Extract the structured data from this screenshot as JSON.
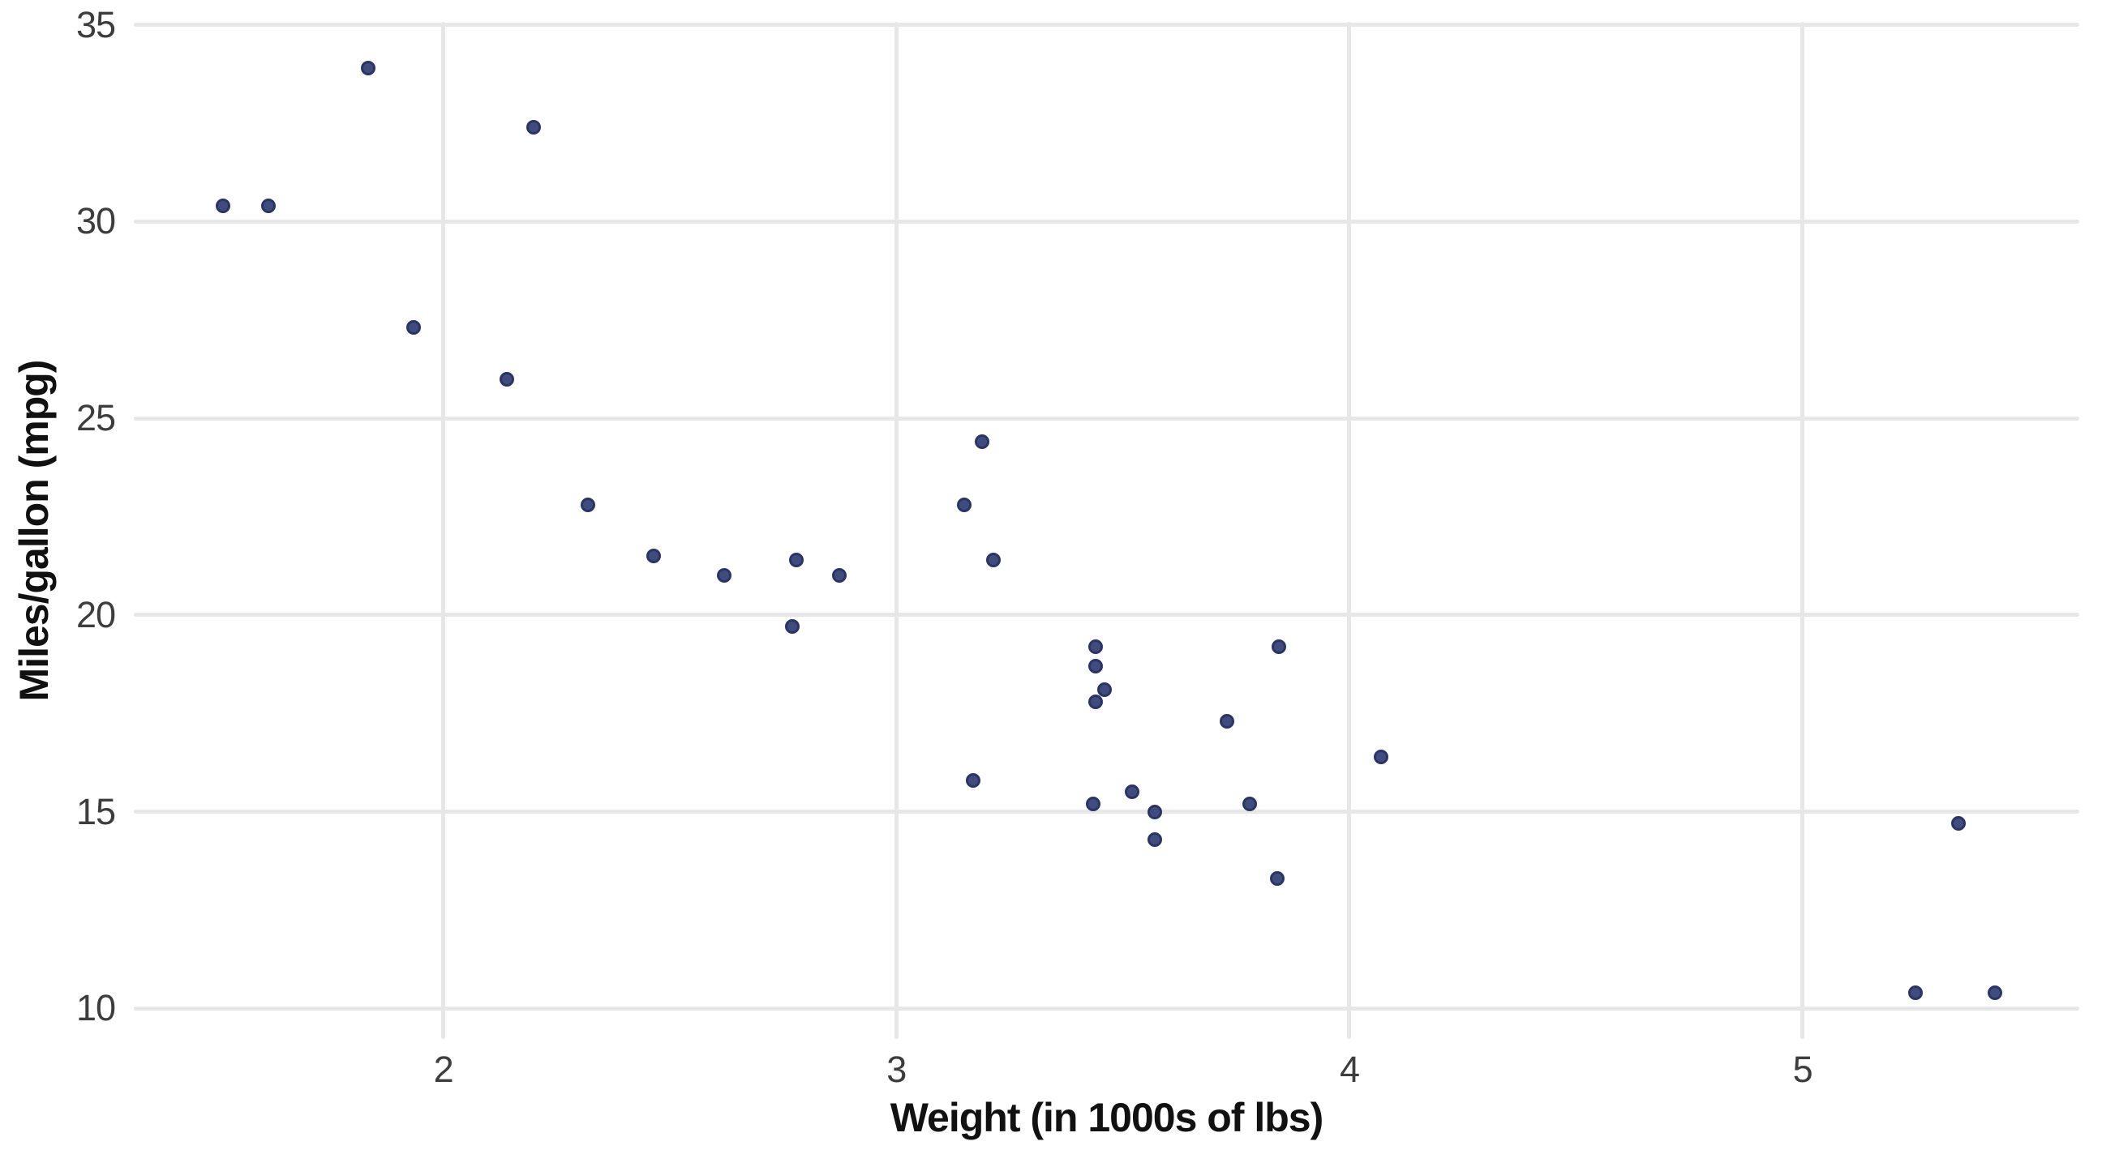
{
  "chart_data": {
    "type": "scatter",
    "title": "",
    "xlabel": "Weight (in 1000s of lbs)",
    "ylabel": "Miles/gallon (mpg)",
    "x_ticks": [
      2,
      3,
      4,
      5
    ],
    "y_ticks": [
      10,
      15,
      20,
      25,
      30,
      35
    ],
    "xlim": [
      1.317,
      5.611
    ],
    "ylim": [
      9.225,
      35.075
    ],
    "grid": "major-only",
    "legend": "none",
    "colors": {
      "point_fill": "#3f4c7d",
      "point_border": "#2b3462",
      "gridline": "#e7e7e7",
      "tick_label": "#3d3d3d",
      "axis_title": "#111111",
      "background": "#ffffff"
    },
    "points": [
      {
        "x": 2.62,
        "y": 21.0
      },
      {
        "x": 2.875,
        "y": 21.0
      },
      {
        "x": 2.32,
        "y": 22.8
      },
      {
        "x": 3.215,
        "y": 21.4
      },
      {
        "x": 3.44,
        "y": 18.7
      },
      {
        "x": 3.46,
        "y": 18.1
      },
      {
        "x": 3.57,
        "y": 14.3
      },
      {
        "x": 3.19,
        "y": 24.4
      },
      {
        "x": 3.15,
        "y": 22.8
      },
      {
        "x": 3.44,
        "y": 19.2
      },
      {
        "x": 3.44,
        "y": 17.8
      },
      {
        "x": 4.07,
        "y": 16.4
      },
      {
        "x": 3.73,
        "y": 17.3
      },
      {
        "x": 3.78,
        "y": 15.2
      },
      {
        "x": 5.25,
        "y": 10.4
      },
      {
        "x": 5.424,
        "y": 10.4
      },
      {
        "x": 5.345,
        "y": 14.7
      },
      {
        "x": 2.2,
        "y": 32.4
      },
      {
        "x": 1.615,
        "y": 30.4
      },
      {
        "x": 1.835,
        "y": 33.9
      },
      {
        "x": 2.465,
        "y": 21.5
      },
      {
        "x": 3.52,
        "y": 15.5
      },
      {
        "x": 3.435,
        "y": 15.2
      },
      {
        "x": 3.84,
        "y": 13.3
      },
      {
        "x": 3.845,
        "y": 19.2
      },
      {
        "x": 1.935,
        "y": 27.3
      },
      {
        "x": 2.14,
        "y": 26.0
      },
      {
        "x": 1.513,
        "y": 30.4
      },
      {
        "x": 3.17,
        "y": 15.8
      },
      {
        "x": 2.77,
        "y": 19.7
      },
      {
        "x": 3.57,
        "y": 15.0
      },
      {
        "x": 2.78,
        "y": 21.4
      }
    ]
  }
}
